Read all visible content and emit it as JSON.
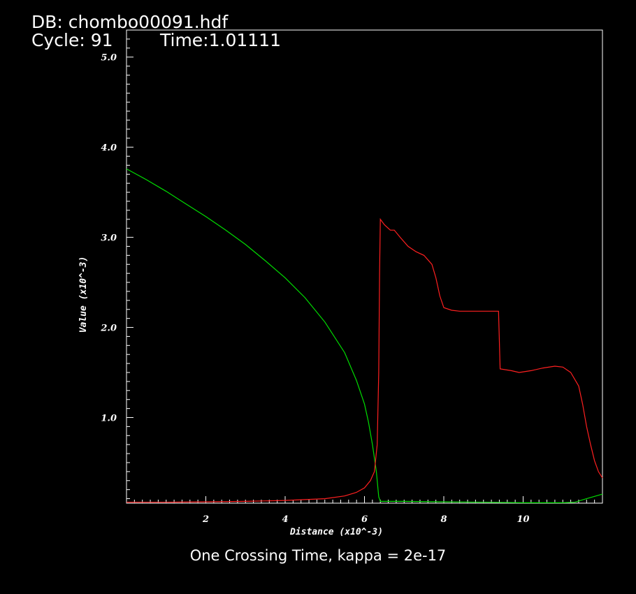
{
  "header": {
    "db_label": "DB: chombo00091.hdf",
    "cycle_label": "Cycle: 91",
    "time_label": "Time:1.01111"
  },
  "caption": "One Crossing Time, kappa = 2e-17",
  "chart_data": {
    "type": "line",
    "xlabel": "Distance (x10^-3)",
    "ylabel": "Value (x10^-3)",
    "xlim": [
      0,
      12
    ],
    "ylim": [
      0.05,
      5.3
    ],
    "x_ticks": [
      2,
      4,
      6,
      8,
      10
    ],
    "y_ticks": [
      1.0,
      2.0,
      3.0,
      4.0,
      5.0
    ],
    "x_tick_labels": [
      "2",
      "4",
      "6",
      "8",
      "10"
    ],
    "y_tick_labels": [
      "1.0",
      "2.0",
      "3.0",
      "4.0",
      "5.0"
    ],
    "grid": false,
    "series": [
      {
        "color": "#00dd00",
        "points": [
          [
            0,
            3.76
          ],
          [
            0.5,
            3.64
          ],
          [
            1,
            3.51
          ],
          [
            1.5,
            3.37
          ],
          [
            2,
            3.23
          ],
          [
            2.5,
            3.08
          ],
          [
            3,
            2.92
          ],
          [
            3.5,
            2.74
          ],
          [
            4,
            2.55
          ],
          [
            4.5,
            2.33
          ],
          [
            5,
            2.06
          ],
          [
            5.5,
            1.72
          ],
          [
            5.8,
            1.41
          ],
          [
            6,
            1.15
          ],
          [
            6.1,
            0.95
          ],
          [
            6.2,
            0.7
          ],
          [
            6.3,
            0.4
          ],
          [
            6.36,
            0.12
          ],
          [
            6.4,
            0.07
          ],
          [
            7,
            0.07
          ],
          [
            8,
            0.065
          ],
          [
            9,
            0.06
          ],
          [
            10,
            0.055
          ],
          [
            11,
            0.055
          ],
          [
            11.3,
            0.06
          ],
          [
            11.6,
            0.1
          ],
          [
            12,
            0.15
          ]
        ]
      },
      {
        "color": "#ff2020",
        "points": [
          [
            0,
            0.06
          ],
          [
            1,
            0.06
          ],
          [
            2,
            0.065
          ],
          [
            3,
            0.07
          ],
          [
            4,
            0.08
          ],
          [
            5,
            0.1
          ],
          [
            5.5,
            0.13
          ],
          [
            5.8,
            0.17
          ],
          [
            6,
            0.22
          ],
          [
            6.15,
            0.3
          ],
          [
            6.25,
            0.4
          ],
          [
            6.32,
            0.7
          ],
          [
            6.36,
            1.5
          ],
          [
            6.38,
            2.6
          ],
          [
            6.4,
            3.2
          ],
          [
            6.5,
            3.14
          ],
          [
            6.65,
            3.08
          ],
          [
            6.75,
            3.08
          ],
          [
            6.9,
            3.0
          ],
          [
            7.1,
            2.9
          ],
          [
            7.3,
            2.84
          ],
          [
            7.5,
            2.8
          ],
          [
            7.7,
            2.7
          ],
          [
            7.8,
            2.55
          ],
          [
            7.9,
            2.35
          ],
          [
            8,
            2.22
          ],
          [
            8.2,
            2.19
          ],
          [
            8.4,
            2.18
          ],
          [
            8.8,
            2.18
          ],
          [
            9.2,
            2.18
          ],
          [
            9.38,
            2.18
          ],
          [
            9.42,
            1.54
          ],
          [
            9.7,
            1.52
          ],
          [
            9.9,
            1.5
          ],
          [
            10.2,
            1.52
          ],
          [
            10.5,
            1.55
          ],
          [
            10.8,
            1.57
          ],
          [
            11,
            1.56
          ],
          [
            11.2,
            1.5
          ],
          [
            11.4,
            1.35
          ],
          [
            11.5,
            1.15
          ],
          [
            11.6,
            0.9
          ],
          [
            11.7,
            0.7
          ],
          [
            11.8,
            0.52
          ],
          [
            11.9,
            0.4
          ],
          [
            12,
            0.33
          ]
        ]
      }
    ]
  }
}
